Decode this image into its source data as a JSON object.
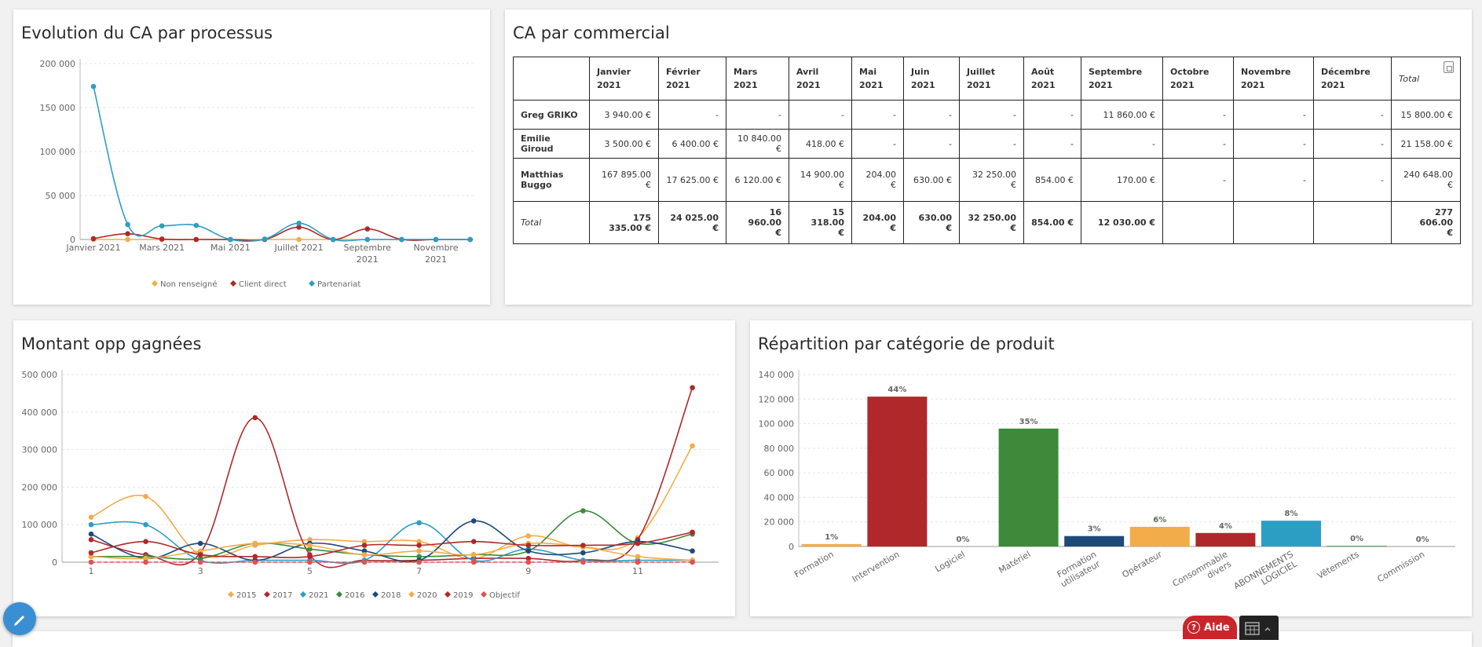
{
  "colors": {
    "orange": "#f3ac4a",
    "red": "#b0282a",
    "blue": "#2c9ec4",
    "green": "#3d8a3a",
    "navy": "#1e4a7a",
    "salmon": "#e05252"
  },
  "panel1": {
    "title": "Evolution du CA par processus",
    "chart_data": {
      "type": "line",
      "x": [
        "Janvier 2021",
        "Février 2021",
        "Mars 2021",
        "Avril 2021",
        "Mai 2021",
        "Juin 2021",
        "Juillet 2021",
        "Août 2021",
        "Septembre 2021",
        "Octobre 2021",
        "Novembre 2021",
        "Décembre 2021"
      ],
      "x_tick_labels": [
        {
          "index": 0,
          "lines": [
            "Janvier 2021"
          ]
        },
        {
          "index": 2,
          "lines": [
            "Mars 2021"
          ]
        },
        {
          "index": 4,
          "lines": [
            "Mai 2021"
          ]
        },
        {
          "index": 6,
          "lines": [
            "Juillet 2021"
          ]
        },
        {
          "index": 8,
          "lines": [
            "Septembre",
            "2021"
          ]
        },
        {
          "index": 10,
          "lines": [
            "Novembre",
            "2021"
          ]
        }
      ],
      "y_ticks": [
        0,
        50000,
        100000,
        150000,
        200000
      ],
      "y_tick_labels": [
        "0",
        "50 000",
        "100 000",
        "150 000",
        "200 000"
      ],
      "ylim": [
        0,
        200000
      ],
      "series": [
        {
          "name": "Non renseigné",
          "color": "#f3ac4a",
          "values": [
            0,
            0,
            0,
            0,
            0,
            0,
            0,
            0,
            0,
            0,
            0,
            0
          ]
        },
        {
          "name": "Client direct",
          "color": "#b0282a",
          "values": [
            1000,
            6500,
            500,
            0,
            0,
            0,
            14000,
            0,
            12000,
            0,
            0,
            0
          ]
        },
        {
          "name": "Partenariat",
          "color": "#2c9ec4",
          "values": [
            174000,
            17000,
            15500,
            16000,
            0,
            500,
            18500,
            0,
            0,
            0,
            0,
            0
          ]
        }
      ]
    }
  },
  "panel2": {
    "title": "CA par commercial",
    "headers": [
      [
        "Janvier",
        "2021"
      ],
      [
        "Février",
        "2021"
      ],
      [
        "Mars 2021"
      ],
      [
        "Avril 2021"
      ],
      [
        "Mai",
        "2021"
      ],
      [
        "Juin",
        "2021"
      ],
      [
        "Juillet",
        "2021"
      ],
      [
        "Août",
        "2021"
      ],
      [
        "Septembre",
        "2021"
      ],
      [
        "Octobre",
        "2021"
      ],
      [
        "Novembre",
        "2021"
      ],
      [
        "Décembre",
        "2021"
      ],
      [
        "Total"
      ]
    ],
    "rows": [
      {
        "name": [
          "Greg GRIKO"
        ],
        "cells": [
          [
            "3 940.00 €"
          ],
          [
            "-"
          ],
          [
            "-"
          ],
          [
            "-"
          ],
          [
            "-"
          ],
          [
            "-"
          ],
          [
            "-"
          ],
          [
            "-"
          ],
          [
            "11 860.00 €"
          ],
          [
            "-"
          ],
          [
            "-"
          ],
          [
            "-"
          ],
          [
            "15 800.00 €"
          ]
        ]
      },
      {
        "name": [
          "Emilie Giroud"
        ],
        "cells": [
          [
            "3 500.00 €"
          ],
          [
            "6 400.00 €"
          ],
          [
            "10 840.00 €"
          ],
          [
            "418.00 €"
          ],
          [
            "-"
          ],
          [
            "-"
          ],
          [
            "-"
          ],
          [
            "-"
          ],
          [
            "-"
          ],
          [
            "-"
          ],
          [
            "-"
          ],
          [
            "-"
          ],
          [
            "21 158.00 €"
          ]
        ]
      },
      {
        "name": [
          "Matthias",
          "Buggo"
        ],
        "cells": [
          [
            "167 895.00 €"
          ],
          [
            "17 625.00 €"
          ],
          [
            "6 120.00 €"
          ],
          [
            "14 900.00 €"
          ],
          [
            "204.00 €"
          ],
          [
            "630.00 €"
          ],
          [
            "32 250.00 €"
          ],
          [
            "854.00 €"
          ],
          [
            "170.00 €"
          ],
          [
            "-"
          ],
          [
            "-"
          ],
          [
            "-"
          ],
          [
            "240 648.00 €"
          ]
        ]
      },
      {
        "name": [
          "Total"
        ],
        "cells": [
          [
            "175 335.00 €"
          ],
          [
            "24 025.00 €"
          ],
          [
            "16 960.00",
            "€"
          ],
          [
            "15 318.00",
            "€"
          ],
          [
            "204.00 €"
          ],
          [
            "630.00 €"
          ],
          [
            "32 250.00 €"
          ],
          [
            "854.00 €"
          ],
          [
            "12 030.00 €"
          ],
          [
            ""
          ],
          [
            ""
          ],
          [
            ""
          ],
          [
            "277 606.00",
            "€"
          ]
        ]
      }
    ]
  },
  "panel3": {
    "title": "Montant opp gagnées",
    "chart_data": {
      "type": "line",
      "x": [
        1,
        2,
        3,
        4,
        5,
        6,
        7,
        8,
        9,
        10,
        11,
        12
      ],
      "x_tick_labels": [
        "1",
        "3",
        "5",
        "7",
        "9",
        "11"
      ],
      "x_tick_values": [
        1,
        3,
        5,
        7,
        9,
        11
      ],
      "y_ticks": [
        0,
        100000,
        200000,
        300000,
        400000,
        500000
      ],
      "y_tick_labels": [
        "0",
        "100 000",
        "200 000",
        "300 000",
        "400 000",
        "500 000"
      ],
      "ylim": [
        0,
        500000
      ],
      "series": [
        {
          "name": "2015",
          "color": "#f3ac4a",
          "values": [
            120000,
            175000,
            20000,
            45000,
            60000,
            55000,
            55000,
            10000,
            70000,
            40000,
            65000,
            310000
          ]
        },
        {
          "name": "2017",
          "color": "#b0282a",
          "values": [
            60000,
            20000,
            25000,
            385000,
            20000,
            5000,
            5000,
            10000,
            10000,
            5000,
            60000,
            465000
          ]
        },
        {
          "name": "2021",
          "color": "#2c9ec4",
          "values": [
            100000,
            100000,
            5000,
            5000,
            5000,
            5000,
            105000,
            5000,
            35000,
            5000,
            5000,
            5000
          ]
        },
        {
          "name": "2016",
          "color": "#3d8a3a",
          "values": [
            15000,
            15000,
            10000,
            50000,
            35000,
            20000,
            15000,
            20000,
            30000,
            137000,
            50000,
            75000
          ]
        },
        {
          "name": "2018",
          "color": "#1e4a7a",
          "values": [
            75000,
            10000,
            50000,
            5000,
            50000,
            30000,
            5000,
            110000,
            30000,
            25000,
            55000,
            30000
          ]
        },
        {
          "name": "2020",
          "color": "#f3ac4a",
          "values": [
            15000,
            10000,
            30000,
            50000,
            45000,
            20000,
            30000,
            20000,
            50000,
            40000,
            15000,
            5000
          ]
        },
        {
          "name": "2019",
          "color": "#b0282a",
          "values": [
            25000,
            55000,
            20000,
            15000,
            15000,
            45000,
            45000,
            55000,
            45000,
            45000,
            50000,
            80000
          ]
        },
        {
          "name": "Objectif",
          "color": "#e05252",
          "values": [
            0,
            0,
            0,
            0,
            0,
            0,
            0,
            0,
            0,
            0,
            0,
            0
          ]
        }
      ]
    }
  },
  "panel4": {
    "title": "Répartition par catégorie de produit",
    "chart_data": {
      "type": "bar",
      "categories": [
        [
          "Formation"
        ],
        [
          "Intervention"
        ],
        [
          "Logiciel"
        ],
        [
          "Matériel"
        ],
        [
          "Formation",
          "utilisateur"
        ],
        [
          "Opérateur"
        ],
        [
          "Consommable",
          "divers"
        ],
        [
          "ABONNEMENTS",
          "LOGICIEL"
        ],
        [
          "Vêtements"
        ],
        [
          "Commission"
        ]
      ],
      "values": [
        2000,
        122000,
        0,
        96000,
        8500,
        16000,
        11000,
        21000,
        500,
        0
      ],
      "data_labels": [
        "1%",
        "44%",
        "0%",
        "35%",
        "3%",
        "6%",
        "4%",
        "8%",
        "0%",
        "0%"
      ],
      "colors": [
        "#f3ac4a",
        "#b0282a",
        "#2c9ec4",
        "#3d8a3a",
        "#1e4a7a",
        "#f3ac4a",
        "#b0282a",
        "#2c9ec4",
        "#3d8a3a",
        "#1e4a7a"
      ],
      "y_ticks": [
        0,
        20000,
        40000,
        60000,
        80000,
        100000,
        120000,
        140000
      ],
      "y_tick_labels": [
        "0",
        "20 000",
        "40 000",
        "60 000",
        "80 000",
        "100 000",
        "120 000",
        "140 000"
      ],
      "ylim": [
        0,
        140000
      ]
    }
  },
  "help_label": "Aide"
}
